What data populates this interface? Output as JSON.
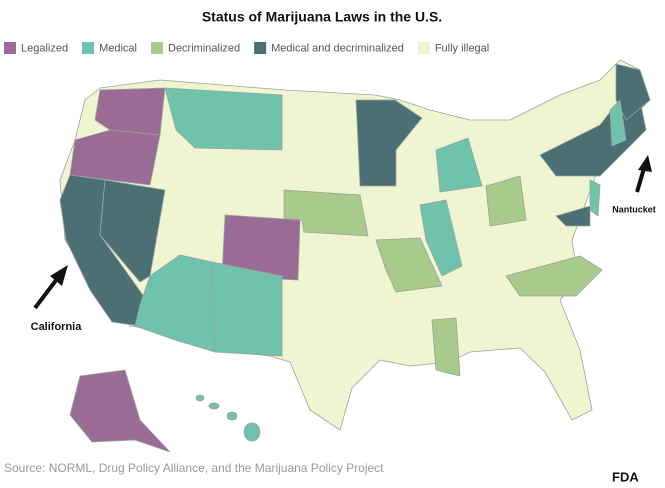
{
  "title": "Status of Marijuana Laws in the U.S.",
  "legend": [
    {
      "label": "Legalized",
      "color": "#9a6b95"
    },
    {
      "label": "Medical",
      "color": "#6fc3ac"
    },
    {
      "label": "Decriminalized",
      "color": "#a8cb8c"
    },
    {
      "label": "Medical and decriminalized",
      "color": "#4c6f75"
    },
    {
      "label": "Fully illegal",
      "color": "#eef5d0"
    }
  ],
  "annotations": [
    "California",
    "Nantucket"
  ],
  "source": "Source: NORML, Drug Policy Alliance, and the Marijuana Policy Project",
  "credit": "FDA"
}
